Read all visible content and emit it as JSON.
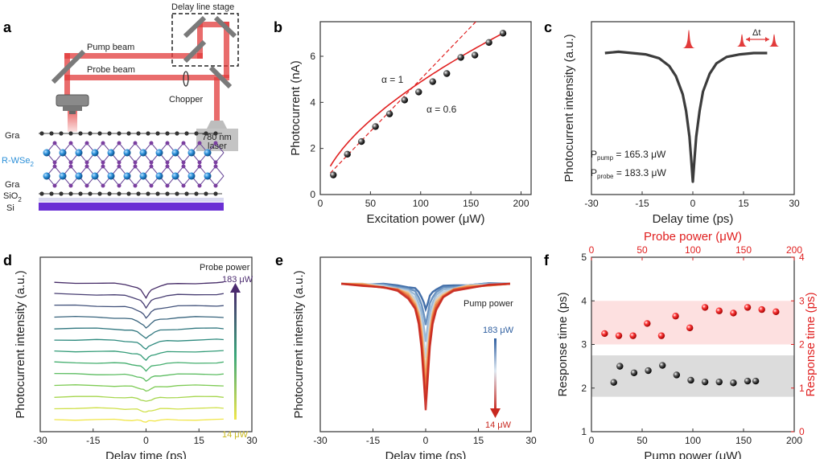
{
  "colors": {
    "beam": "#e23b3b",
    "mirror": "#7a7a7a",
    "wse2_blue": "#2b8fd8",
    "se_purple": "#7b3fa0",
    "si": "#6a2fd4",
    "red_marker": "#e02020"
  },
  "panel_a": {
    "label": "a",
    "stage_label": "Delay line stage",
    "pump_label": "Pump beam",
    "probe_label": "Probe beam",
    "chopper_label": "Chopper",
    "laser_line1": "780 nm",
    "laser_line2": "laser",
    "gra_top": "Gra",
    "wse2_label": "R-WSe",
    "wse2_sub": "2",
    "gra_bottom": "Gra",
    "sio2_label": "SiO",
    "sio2_sub": "2",
    "si_label": "Si"
  },
  "panel_b": {
    "label": "b",
    "alpha1_label": "α = 1",
    "alpha2_label": "α = 0.6"
  },
  "panel_c": {
    "label": "c",
    "pump_text": "P",
    "pump_sub": "pump",
    "pump_val": " = 165.3 μW",
    "probe_text": "P",
    "probe_sub": "probe",
    "probe_val": " = 183.3 μW",
    "dt_label": "Δt"
  },
  "panel_d": {
    "label": "d",
    "legend_title": "Probe power",
    "top_val": "183 μW",
    "bottom_val": "14 μW"
  },
  "panel_e": {
    "label": "e",
    "legend_title": "Pump power",
    "top_val": "183 μW",
    "bottom_val": "14 μW"
  },
  "panel_f": {
    "label": "f"
  },
  "chart_data": [
    {
      "id": "b",
      "type": "scatter",
      "title": "",
      "xlabel": "Excitation power (μW)",
      "ylabel": "Photocurrent (nA)",
      "xlim": [
        0,
        210
      ],
      "ylim": [
        0,
        7.5
      ],
      "xticks": [
        0,
        50,
        100,
        150,
        200
      ],
      "yticks": [
        0,
        2,
        4,
        6
      ],
      "x": [
        13,
        27,
        41,
        55,
        69,
        84,
        98,
        112,
        126,
        140,
        154,
        168,
        182
      ],
      "y": [
        0.85,
        1.75,
        2.3,
        2.95,
        3.5,
        4.1,
        4.45,
        4.9,
        5.25,
        5.95,
        6.05,
        6.6,
        7.0
      ],
      "fit_alpha": 0.6,
      "linear_alpha": 1
    },
    {
      "id": "c",
      "type": "line",
      "xlabel": "Delay time (ps)",
      "ylabel": "Photocurrent  intensity (a.u.)",
      "xlim": [
        -30,
        30
      ],
      "xticks": [
        -30,
        -15,
        0,
        15,
        30
      ],
      "x": [
        -26,
        -22,
        -18,
        -14,
        -10,
        -7,
        -5,
        -3,
        -2,
        -1,
        -0.5,
        0,
        0.5,
        1,
        2,
        3,
        5,
        7,
        10,
        14,
        18,
        22
      ],
      "y": [
        1.0,
        1.01,
        1.0,
        0.99,
        0.96,
        0.9,
        0.82,
        0.68,
        0.55,
        0.35,
        0.18,
        0.0,
        0.18,
        0.35,
        0.55,
        0.7,
        0.84,
        0.92,
        0.97,
        0.99,
        1.0,
        1.0
      ]
    },
    {
      "id": "d",
      "type": "line",
      "xlabel": "Delay time (ps)",
      "ylabel": "Photocurrent  intensity (a.u.)",
      "xlim": [
        -30,
        30
      ],
      "xticks": [
        -30,
        -15,
        0,
        15,
        30
      ],
      "series_count": 13,
      "series_colors": [
        "#f1e64a",
        "#cfe04a",
        "#a6d64e",
        "#7ecb55",
        "#5dbd62",
        "#44ae6e",
        "#349c78",
        "#2d8a7e",
        "#30777f",
        "#38647d",
        "#41517a",
        "#473d72",
        "#442a66"
      ],
      "depths": [
        0.25,
        0.45,
        0.55,
        0.65,
        0.75,
        0.85,
        0.95,
        1.05,
        1.15,
        1.25,
        1.35,
        1.45,
        1.6
      ],
      "shape_x": [
        -26,
        -20,
        -14,
        -9,
        -6,
        -4,
        -2.5,
        -1.5,
        -0.7,
        0,
        0.7,
        1.5,
        2.5,
        4,
        6,
        9,
        14,
        20,
        22
      ],
      "shape_y": [
        0.0,
        0.01,
        0.03,
        0.07,
        0.13,
        0.22,
        0.35,
        0.52,
        0.75,
        1.0,
        0.75,
        0.52,
        0.35,
        0.22,
        0.13,
        0.07,
        0.03,
        0.01,
        0.0
      ]
    },
    {
      "id": "e",
      "type": "line",
      "xlabel": "Delay time (ps)",
      "ylabel": "Photocurrent  intensity (a.u.)",
      "xlim": [
        -30,
        30
      ],
      "xticks": [
        -30,
        -15,
        0,
        15,
        30
      ],
      "series_colors": [
        "#2f5fa0",
        "#5a86b9",
        "#8fb1d2",
        "#b6cde2",
        "#e9c9a2",
        "#f0a35e",
        "#e8753c",
        "#d84a2c",
        "#c8281f"
      ],
      "depths": [
        0.2,
        0.32,
        0.45,
        0.58,
        0.68,
        0.76,
        0.84,
        0.92,
        1.0
      ],
      "shape_x": [
        -24,
        -18,
        -12,
        -8,
        -5,
        -3,
        -2,
        -1.2,
        -0.5,
        0,
        0.5,
        1.2,
        2,
        3,
        5,
        8,
        12,
        18,
        24
      ],
      "shape_y": [
        0.0,
        0.01,
        0.03,
        0.06,
        0.11,
        0.2,
        0.32,
        0.5,
        0.78,
        1.0,
        0.78,
        0.5,
        0.32,
        0.2,
        0.11,
        0.06,
        0.03,
        0.01,
        0.0
      ]
    },
    {
      "id": "f",
      "type": "scatter",
      "xlabel": "Pump power (μW)",
      "ylabel": "Response  time (ps)",
      "x2label": "Probe power (μW)",
      "y2label": "Response  time (ps)",
      "xlim": [
        0,
        200
      ],
      "ylim": [
        1,
        5
      ],
      "x2lim": [
        0,
        200
      ],
      "y2lim": [
        0,
        4
      ],
      "xticks": [
        0,
        50,
        100,
        150,
        200
      ],
      "yticks": [
        1,
        2,
        3,
        4,
        5
      ],
      "x2ticks": [
        0,
        50,
        100,
        150,
        200
      ],
      "y2ticks": [
        0,
        1,
        2,
        3,
        4
      ],
      "pump_x": [
        22,
        28,
        42,
        56,
        70,
        84,
        98,
        112,
        126,
        140,
        154,
        162
      ],
      "pump_y": [
        2.13,
        2.5,
        2.35,
        2.4,
        2.52,
        2.3,
        2.18,
        2.14,
        2.14,
        2.12,
        2.16,
        2.16
      ],
      "probe_x": [
        13,
        27,
        41,
        55,
        69,
        83,
        97,
        112,
        126,
        140,
        154,
        168,
        182
      ],
      "probe_y": [
        2.25,
        2.2,
        2.2,
        2.48,
        2.2,
        2.65,
        2.38,
        2.85,
        2.77,
        2.72,
        2.85,
        2.8,
        2.75
      ],
      "gray_band": [
        1.8,
        2.75
      ],
      "red_band": [
        2.0,
        3.0
      ]
    }
  ]
}
